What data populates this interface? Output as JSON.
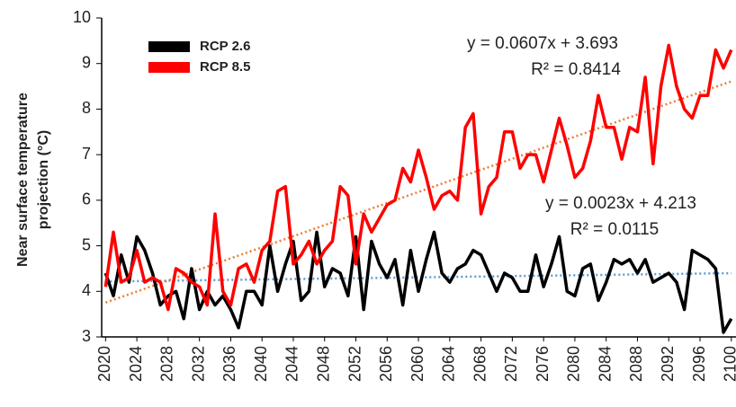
{
  "chart_data": {
    "type": "line",
    "ylabel": [
      "Near surface temperature",
      "projection (°C)"
    ],
    "x": [
      2020,
      2021,
      2022,
      2023,
      2024,
      2025,
      2026,
      2027,
      2028,
      2029,
      2030,
      2031,
      2032,
      2033,
      2034,
      2035,
      2036,
      2037,
      2038,
      2039,
      2040,
      2041,
      2042,
      2043,
      2044,
      2045,
      2046,
      2047,
      2048,
      2049,
      2050,
      2051,
      2052,
      2053,
      2054,
      2055,
      2056,
      2057,
      2058,
      2059,
      2060,
      2061,
      2062,
      2063,
      2064,
      2065,
      2066,
      2067,
      2068,
      2069,
      2070,
      2071,
      2072,
      2073,
      2074,
      2075,
      2076,
      2077,
      2078,
      2079,
      2080,
      2081,
      2082,
      2083,
      2084,
      2085,
      2086,
      2087,
      2088,
      2089,
      2090,
      2091,
      2092,
      2093,
      2094,
      2095,
      2096,
      2097,
      2098,
      2099,
      2100
    ],
    "xlim": [
      2019.5,
      2100.6
    ],
    "xticks": [
      2020,
      2024,
      2028,
      2032,
      2036,
      2040,
      2044,
      2048,
      2052,
      2056,
      2060,
      2064,
      2068,
      2072,
      2076,
      2080,
      2084,
      2088,
      2092,
      2096,
      2100
    ],
    "ylim": [
      3,
      10
    ],
    "yticks": [
      3,
      4,
      5,
      6,
      7,
      8,
      9,
      10
    ],
    "legend": "upper left",
    "series": [
      {
        "name": "RCP 2.6",
        "color": "#000000",
        "values": [
          4.4,
          3.9,
          4.8,
          4.2,
          5.2,
          4.9,
          4.4,
          3.7,
          3.9,
          4.0,
          3.4,
          4.5,
          3.6,
          4.0,
          3.7,
          3.9,
          3.6,
          3.2,
          4.0,
          4.0,
          3.7,
          5.0,
          4.0,
          4.6,
          5.1,
          3.8,
          4.0,
          5.3,
          4.1,
          4.5,
          4.4,
          3.9,
          5.2,
          3.6,
          5.1,
          4.6,
          4.3,
          4.7,
          3.7,
          4.9,
          4.0,
          4.7,
          5.3,
          4.4,
          4.2,
          4.5,
          4.6,
          4.9,
          4.8,
          4.4,
          4.0,
          4.4,
          4.3,
          4.0,
          4.0,
          4.8,
          4.1,
          4.6,
          5.2,
          4.0,
          3.9,
          4.5,
          4.6,
          3.8,
          4.2,
          4.7,
          4.6,
          4.7,
          4.4,
          4.7,
          4.2,
          4.3,
          4.4,
          4.2,
          3.6,
          4.9,
          4.8,
          4.7,
          4.5,
          3.1,
          3.4
        ],
        "trend": {
          "slope": 0.0023,
          "intercept": 4.213,
          "color": "#5b9bd5"
        }
      },
      {
        "name": "RCP 8.5",
        "color": "#ff0000",
        "values": [
          4.1,
          5.3,
          4.2,
          4.3,
          4.9,
          4.2,
          4.3,
          4.2,
          3.6,
          4.5,
          4.4,
          4.2,
          4.1,
          3.7,
          5.7,
          4.0,
          3.7,
          4.5,
          4.6,
          4.2,
          4.9,
          5.1,
          6.2,
          6.3,
          4.6,
          4.8,
          5.1,
          4.6,
          4.9,
          5.1,
          6.3,
          6.1,
          4.6,
          5.7,
          5.3,
          5.6,
          5.9,
          6.0,
          6.7,
          6.4,
          7.1,
          6.5,
          5.8,
          6.1,
          6.2,
          6.0,
          7.6,
          7.9,
          5.7,
          6.3,
          6.5,
          7.5,
          7.5,
          6.7,
          7.0,
          7.0,
          6.4,
          7.1,
          7.8,
          7.2,
          6.5,
          6.7,
          7.3,
          8.3,
          7.6,
          7.6,
          6.9,
          7.6,
          7.5,
          8.7,
          6.8,
          8.5,
          9.4,
          8.5,
          8.0,
          7.8,
          8.3,
          8.3,
          9.3,
          8.9,
          9.3
        ],
        "trend": {
          "slope": 0.0607,
          "intercept": 3.693,
          "color": "#ed7d31"
        }
      }
    ],
    "annotations": [
      "y = 0.0023x + 4.213",
      "R² = 0.0115",
      "y = 0.0607x + 3.693",
      "R² = 0.8414"
    ]
  }
}
